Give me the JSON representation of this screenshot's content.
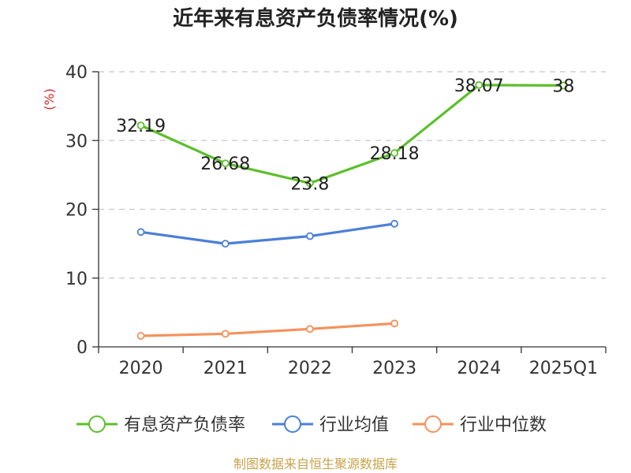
{
  "chart_data": {
    "type": "line",
    "title": "近年来有息资产负债率情况(%)",
    "ylabel": "(%)",
    "categories": [
      "2020",
      "2021",
      "2022",
      "2023",
      "2024",
      "2025Q1"
    ],
    "ylim": [
      0,
      40
    ],
    "yticks": [
      0,
      10,
      20,
      30,
      40
    ],
    "grid": true,
    "legend_position": "bottom",
    "series": [
      {
        "name": "有息资产负债率",
        "color": "#5cbf2a",
        "values": [
          32.19,
          26.68,
          23.8,
          28.18,
          38.07,
          38
        ],
        "labels": [
          "32.19",
          "26.68",
          "23.8",
          "28.18",
          "38.07",
          "38"
        ]
      },
      {
        "name": "行业均值",
        "color": "#4a7fd8",
        "values": [
          16.7,
          15.0,
          16.1,
          17.9,
          null,
          null
        ]
      },
      {
        "name": "行业中位数",
        "color": "#f5915a",
        "values": [
          1.6,
          1.9,
          2.6,
          3.4,
          null,
          null
        ]
      }
    ],
    "source": "制图数据来自恒生聚源数据库",
    "colors": {
      "unit": "#d62728",
      "source": "#c8a24a",
      "grid": "#c8c8c8",
      "axis": "#333333"
    }
  }
}
